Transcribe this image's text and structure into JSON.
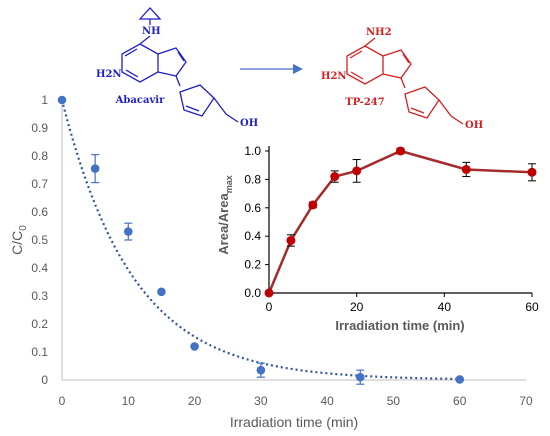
{
  "chart_data": [
    {
      "type": "scatter",
      "xlabel": "Irradiation time (min)",
      "ylabel": "C/C0",
      "ylabel_main": "C/C",
      "ylabel_sub": "0",
      "xlim": [
        0,
        70
      ],
      "ylim": [
        0,
        1
      ],
      "xticks": [
        "0",
        "10",
        "20",
        "30",
        "40",
        "50",
        "60",
        "70"
      ],
      "yticks": [
        "0",
        "0.1",
        "0.2",
        "0.3",
        "0.4",
        "0.5",
        "0.6",
        "0.7",
        "0.8",
        "0.9",
        "1"
      ],
      "grid": false,
      "marker_color": "#4472c4",
      "points": [
        {
          "x": 0,
          "y": 1.0,
          "err": 0
        },
        {
          "x": 5,
          "y": 0.755,
          "err": 0.05
        },
        {
          "x": 10,
          "y": 0.53,
          "err": 0.03
        },
        {
          "x": 15,
          "y": 0.315,
          "err": 0
        },
        {
          "x": 20,
          "y": 0.12,
          "err": 0
        },
        {
          "x": 30,
          "y": 0.035,
          "err": 0.025
        },
        {
          "x": 45,
          "y": 0.01,
          "err": 0.025
        },
        {
          "x": 60,
          "y": 0.002,
          "err": 0
        }
      ],
      "fit": {
        "type": "exponential",
        "style": "dotted",
        "k": 0.0933
      }
    },
    {
      "type": "line",
      "xlabel": "Irradiation time (min)",
      "ylabel": "Area/Areamax",
      "ylabel_main": "Area/Area",
      "ylabel_sub": "max",
      "xlim": [
        0,
        60
      ],
      "ylim": [
        0,
        1.0
      ],
      "xticks": [
        "0",
        "20",
        "40",
        "60"
      ],
      "yticks": [
        "0.0",
        "0.2",
        "0.4",
        "0.6",
        "0.8",
        "1.0"
      ],
      "grid": false,
      "marker_color": "#c00000",
      "line_color": "#a52a2a",
      "points": [
        {
          "x": 0,
          "y": 0.0,
          "err": 0
        },
        {
          "x": 5,
          "y": 0.37,
          "err": 0.04
        },
        {
          "x": 10,
          "y": 0.62,
          "err": 0.02
        },
        {
          "x": 15,
          "y": 0.82,
          "err": 0.04
        },
        {
          "x": 20,
          "y": 0.86,
          "err": 0.08
        },
        {
          "x": 30,
          "y": 1.0,
          "err": 0.02
        },
        {
          "x": 45,
          "y": 0.87,
          "err": 0.05
        },
        {
          "x": 60,
          "y": 0.85,
          "err": 0.06
        }
      ]
    }
  ],
  "molecules": {
    "reactant": {
      "name": "Abacavir",
      "color": "#1f1fc8",
      "nh": "NH",
      "nh2": "H2N",
      "oh": "OH"
    },
    "product": {
      "name": "TP-247",
      "color": "#d42020",
      "nh2_top": "NH2",
      "nh2": "H2N",
      "oh": "OH"
    },
    "arrow_color": "#4472c4"
  }
}
